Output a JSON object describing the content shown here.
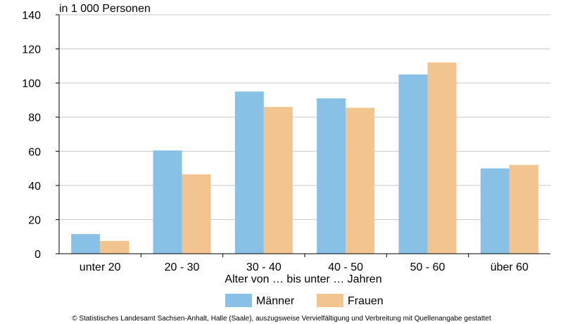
{
  "chart_data": {
    "type": "bar",
    "unit_label": "in 1 000 Personen",
    "xlabel": "Alter von … bis unter … Jahren",
    "ylabel": "",
    "categories": [
      "unter 20",
      "20 - 30",
      "30 - 40",
      "40 - 50",
      "50 - 60",
      "über 60"
    ],
    "series": [
      {
        "name": "Männer",
        "color": "#89C0E5",
        "values": [
          11.5,
          60.5,
          95,
          91,
          105,
          50
        ]
      },
      {
        "name": "Frauen",
        "color": "#F2C48F",
        "values": [
          7.5,
          46.5,
          86,
          85.5,
          112,
          52
        ]
      }
    ],
    "ylim": [
      0,
      140
    ],
    "yticks": [
      0,
      20,
      40,
      60,
      80,
      100,
      120,
      140
    ],
    "grid": true,
    "legend_position": "bottom"
  },
  "footer": "© Statistisches Landesamt Sachsen-Anhalt, Halle (Saale), auszugsweise Vervielfältigung und Verbreitung mit Quellenangabe gestattet"
}
